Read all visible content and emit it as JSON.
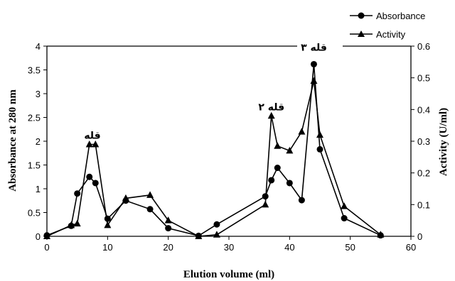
{
  "chart_data": {
    "type": "line",
    "xlabel": "Elution volume (ml)",
    "ylabel": "Absorbance at 280 nm",
    "y2label": "Activity (U/ml)",
    "xlim": [
      0,
      60
    ],
    "ylim": [
      0,
      4
    ],
    "y2lim": [
      0,
      0.6
    ],
    "x_ticks": [
      0,
      10,
      20,
      30,
      40,
      50,
      60
    ],
    "y_ticks": [
      0,
      0.5,
      1,
      1.5,
      2,
      2.5,
      3,
      3.5,
      4
    ],
    "y_tick_labels": [
      "0",
      "0.5",
      "1",
      "1.5",
      "2",
      "2.5",
      "3",
      "3.5",
      "4"
    ],
    "y2_ticks": [
      0,
      0.1,
      0.2,
      0.3,
      0.4,
      0.5,
      0.6
    ],
    "y2_tick_labels": [
      "0",
      "0.1",
      "0.2",
      "0.3",
      "0.4",
      "0.5",
      "0.6"
    ],
    "grid": false,
    "legend_position": "top-right",
    "series": [
      {
        "name": "Absorbance",
        "axis": "left",
        "marker": "circle",
        "color": "#000000",
        "x": [
          0,
          4,
          5,
          7,
          8,
          10,
          13,
          17,
          20,
          25,
          28,
          36,
          37,
          38,
          40,
          42,
          44,
          45,
          49,
          55
        ],
        "y": [
          0.02,
          0.22,
          0.9,
          1.25,
          1.12,
          0.37,
          0.75,
          0.57,
          0.17,
          0.01,
          0.25,
          0.84,
          1.18,
          1.44,
          1.12,
          0.76,
          3.62,
          1.83,
          0.38,
          0.02
        ]
      },
      {
        "name": "Activity",
        "axis": "right",
        "marker": "triangle",
        "color": "#000000",
        "x": [
          0,
          4,
          5,
          7,
          8,
          10,
          13,
          17,
          20,
          25,
          28,
          36,
          37,
          38,
          40,
          42,
          44,
          45,
          49,
          55
        ],
        "y": [
          0.0,
          0.035,
          0.04,
          0.29,
          0.29,
          0.035,
          0.12,
          0.13,
          0.05,
          0.0,
          0.005,
          0.1,
          0.38,
          0.285,
          0.27,
          0.33,
          0.49,
          0.32,
          0.095,
          0.005
        ]
      }
    ],
    "annotations": [
      {
        "text": "قله",
        "x": 7.5,
        "y": 2.05
      },
      {
        "text": "قله ۲",
        "x": 37,
        "y": 2.65
      },
      {
        "text": "قله ۳",
        "x": 44,
        "y": 3.9
      }
    ]
  }
}
